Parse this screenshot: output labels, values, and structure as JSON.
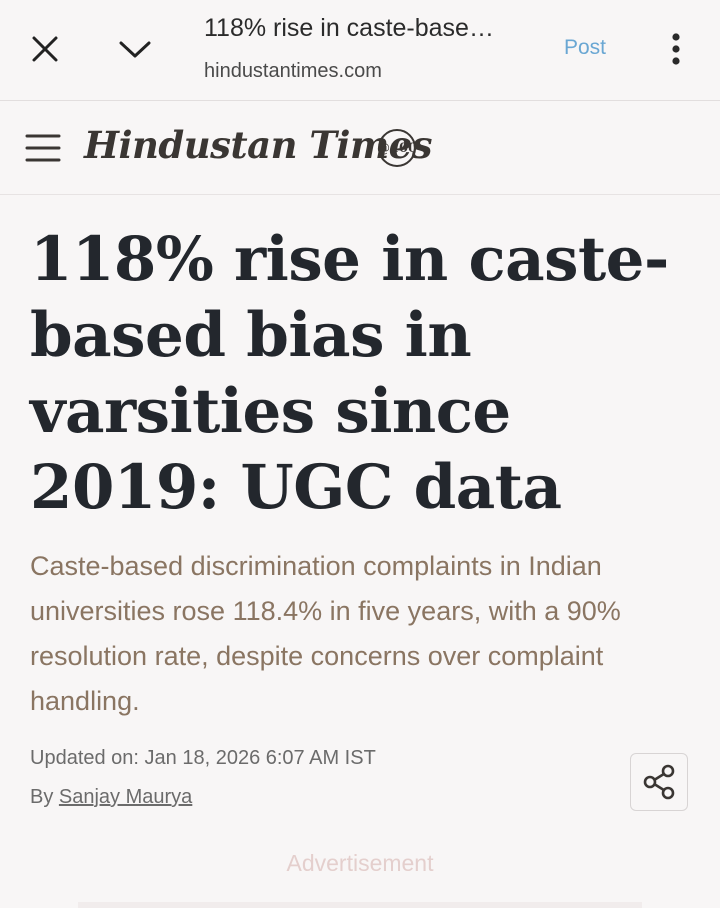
{
  "topbar": {
    "close_icon": "close-icon",
    "minimize_icon": "chevron-down-icon",
    "tab_title": "118% rise in caste-base…",
    "tab_url": "hindustantimes.com",
    "post_label": "Post",
    "more_icon": "more-vert-icon",
    "link_color": "#6aa7d3"
  },
  "site_header": {
    "menu_icon": "hamburger-menu-icon",
    "logo_text": "Hindustan Times",
    "logo_badge": "@100"
  },
  "article": {
    "headline": "118% rise in caste-based bias in varsities since 2019: UGC data",
    "summary": "Caste-based discrimination complaints in Indian universities rose 118.4% in five years, with a 90% resolution rate, despite concerns over complaint handling.",
    "updated": "Updated on: Jan 18, 2026 6:07 AM IST",
    "by_label": "By",
    "author": "Sanjay Maurya",
    "share_icon": "share-icon",
    "summary_color": "#8a7562"
  },
  "ad": {
    "label": "Advertisement"
  }
}
